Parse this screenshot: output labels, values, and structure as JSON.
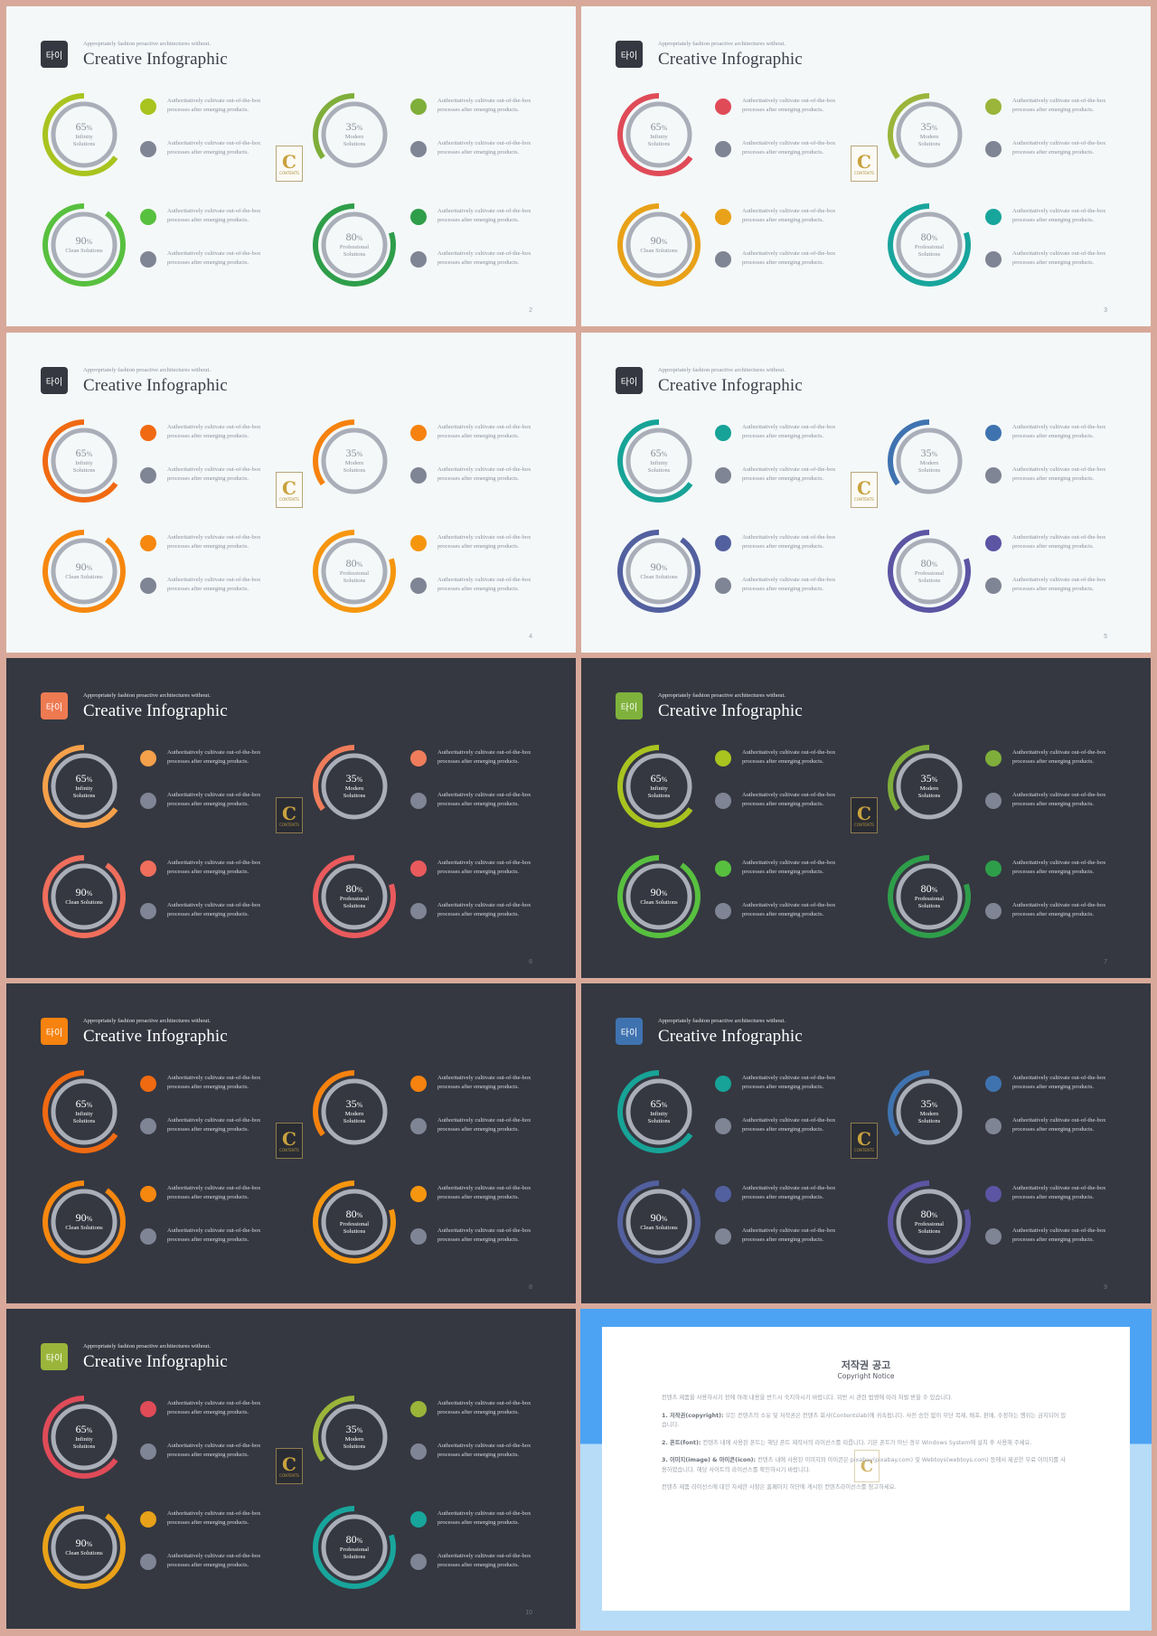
{
  "common": {
    "subtitle": "Appropriately fashion proactive architectures without.",
    "title": "Creative Infographic",
    "logo_text": "타이",
    "desc_line1": "Authoritatively cultivate out-of-the-box",
    "desc_line2": "processes after emerging products.",
    "badge_letter": "C",
    "badge_text": "CONTENTS",
    "rings": [
      {
        "value": 65,
        "label": "Infinity Solutions"
      },
      {
        "value": 35,
        "label": "Modern Solutions"
      },
      {
        "value": 90,
        "label": "Clean Solutions"
      },
      {
        "value": 80,
        "label": "Professional Solutions"
      }
    ]
  },
  "slides": [
    {
      "page": "2",
      "theme": "light",
      "logo_color": "#353841",
      "colors": [
        "#a9c31f",
        "#7fae3a",
        "#58c03f",
        "#2f9e4a"
      ]
    },
    {
      "page": "3",
      "theme": "light",
      "logo_color": "#353841",
      "colors": [
        "#e04b58",
        "#9ab53a",
        "#e8a118",
        "#18a59c"
      ]
    },
    {
      "page": "4",
      "theme": "light",
      "logo_color": "#353841",
      "colors": [
        "#f06a12",
        "#f6820f",
        "#f6870f",
        "#f6960f"
      ]
    },
    {
      "page": "5",
      "theme": "light",
      "logo_color": "#353841",
      "colors": [
        "#17a397",
        "#3f73b0",
        "#52609f",
        "#5b55a3"
      ]
    },
    {
      "page": "6",
      "theme": "dark",
      "logo_color": "#ee7a52",
      "colors": [
        "#f5a04a",
        "#ef7d5b",
        "#ef6e5c",
        "#e95a5c"
      ]
    },
    {
      "page": "7",
      "theme": "dark",
      "logo_color": "#7fb23c",
      "colors": [
        "#a9c31f",
        "#7fae3a",
        "#58c03f",
        "#2f9e4a"
      ]
    },
    {
      "page": "8",
      "theme": "dark",
      "logo_color": "#f6820f",
      "colors": [
        "#f06a12",
        "#f6820f",
        "#f6870f",
        "#f6960f"
      ]
    },
    {
      "page": "9",
      "theme": "dark",
      "logo_color": "#3f73b0",
      "colors": [
        "#17a397",
        "#3f73b0",
        "#52609f",
        "#5b55a3"
      ]
    },
    {
      "page": "10",
      "theme": "dark",
      "logo_color": "#9ab53a",
      "colors": [
        "#e04b58",
        "#9ab53a",
        "#e8a118",
        "#18a59c"
      ]
    }
  ],
  "copyright": {
    "title": "저작권 공고",
    "subtitle": "Copyright Notice",
    "intro": "컨텐츠 제품을 사용하시기 전에 아래 내용을 반드시 숙지하시기 바랍니다. 위반 시 관련 법령에 따라 처벌 받을 수 있습니다.",
    "p1_head": "1. 저작권(copyright):",
    "p1": "모든 컨텐츠의 소유 및 저작권은 컨텐츠 회사(Contentslab)에 귀속됩니다. 사전 승인 없이 무단 복제, 배포, 판매, 수정하는 행위는 금지되어 있습니다.",
    "p2_head": "2. 폰트(font):",
    "p2": "컨텐츠 내에 사용된 폰트는 해당 폰트 제작사의 라이선스를 따릅니다. 기본 폰트가 아닌 경우 Windows System에 설치 후 사용해 주세요.",
    "p3_head": "3. 이미지(image) & 아이콘(icon):",
    "p3": "컨텐츠 내에 사용된 이미지와 아이콘은 pixabay(pixabay.com) 및 Webtoys(webtoys.com) 등에서 제공한 무료 이미지를 사용하였습니다. 해당 사이트의 라이선스를 확인하시기 바랍니다.",
    "outro": "컨텐츠 제품 라이선스에 대한 자세한 사항은 홈페이지 하단에 게시된 컨텐츠라이선스를 참고하세요."
  }
}
